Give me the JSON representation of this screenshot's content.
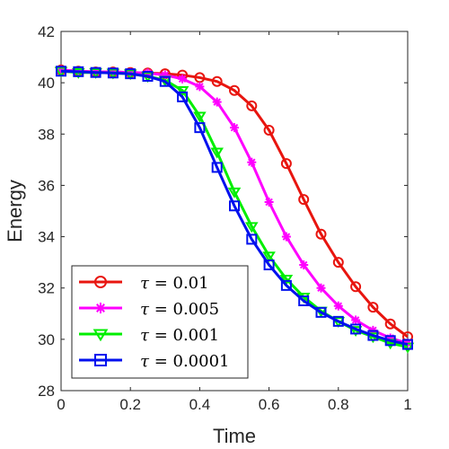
{
  "chart_data": {
    "type": "line",
    "xlabel": "Time",
    "ylabel": "Energy",
    "xlim": [
      0,
      1
    ],
    "ylim": [
      28,
      42
    ],
    "xticks": [
      0,
      0.2,
      0.4,
      0.6,
      0.8,
      1
    ],
    "xtick_labels": [
      "0",
      "0.2",
      "0.4",
      "0.6",
      "0.8",
      "1"
    ],
    "yticks": [
      28,
      30,
      32,
      34,
      36,
      38,
      40,
      42
    ],
    "ytick_labels": [
      "28",
      "30",
      "32",
      "34",
      "36",
      "38",
      "40",
      "42"
    ],
    "grid": false,
    "legend_position": "bottom-left",
    "x": [
      0,
      0.05,
      0.1,
      0.15,
      0.2,
      0.25,
      0.3,
      0.35,
      0.4,
      0.45,
      0.5,
      0.55,
      0.6,
      0.65,
      0.7,
      0.75,
      0.8,
      0.85,
      0.9,
      0.95,
      1.0
    ],
    "series": [
      {
        "name": "τ = 0.01",
        "color": "#e8150f",
        "marker": "circle",
        "values": [
          40.5,
          40.45,
          40.42,
          40.42,
          40.4,
          40.38,
          40.35,
          40.3,
          40.2,
          40.05,
          39.7,
          39.1,
          38.15,
          36.85,
          35.45,
          34.1,
          33.0,
          32.05,
          31.25,
          30.6,
          30.1
        ]
      },
      {
        "name": "τ = 0.005",
        "color": "#ff00ff",
        "marker": "asterisk",
        "values": [
          40.5,
          40.45,
          40.42,
          40.42,
          40.4,
          40.38,
          40.3,
          40.15,
          39.85,
          39.25,
          38.25,
          36.9,
          35.35,
          34.0,
          32.9,
          32.0,
          31.3,
          30.75,
          30.35,
          30.05,
          29.85
        ]
      },
      {
        "name": "τ = 0.001",
        "color": "#00ee00",
        "marker": "triangle-down",
        "values": [
          40.45,
          40.4,
          40.4,
          40.38,
          40.35,
          40.25,
          40.1,
          39.7,
          38.7,
          37.3,
          35.75,
          34.4,
          33.25,
          32.35,
          31.65,
          31.1,
          30.7,
          30.35,
          30.1,
          29.85,
          29.7
        ]
      },
      {
        "name": "τ = 0.0001",
        "color": "#0010ee",
        "marker": "square",
        "values": [
          40.45,
          40.43,
          40.4,
          40.38,
          40.35,
          40.25,
          40.05,
          39.45,
          38.25,
          36.7,
          35.2,
          33.9,
          32.9,
          32.1,
          31.5,
          31.05,
          30.7,
          30.4,
          30.15,
          29.95,
          29.8
        ]
      }
    ]
  }
}
